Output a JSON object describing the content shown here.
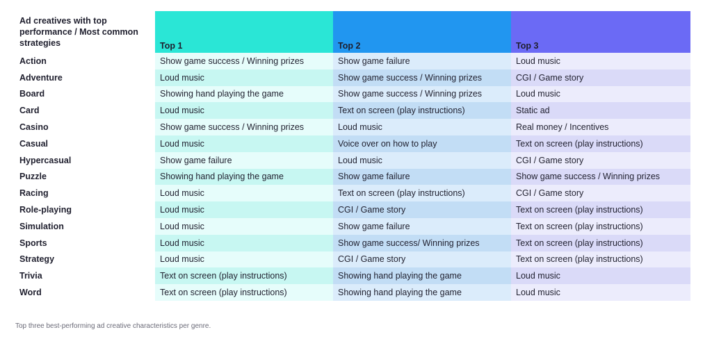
{
  "chart_data": {
    "type": "table",
    "corner_header": "Ad creatives with top performance / Most common strategies",
    "columns": [
      "Top 1",
      "Top 2",
      "Top 3"
    ],
    "column_colors": [
      "#2ae6d6",
      "#2196f0",
      "#6b6af5"
    ],
    "rows": [
      {
        "genre": "Action",
        "values": [
          "Show game success / Winning prizes",
          "Show game failure",
          "Loud music"
        ]
      },
      {
        "genre": "Adventure",
        "values": [
          "Loud music",
          "Show game success / Winning prizes",
          "CGI / Game story"
        ]
      },
      {
        "genre": "Board",
        "values": [
          "Showing hand playing the game",
          "Show game success / Winning prizes",
          "Loud music"
        ]
      },
      {
        "genre": "Card",
        "values": [
          "Loud music",
          "Text on screen (play instructions)",
          "Static ad"
        ]
      },
      {
        "genre": "Casino",
        "values": [
          "Show game success / Winning prizes",
          "Loud music",
          "Real money / Incentives"
        ]
      },
      {
        "genre": "Casual",
        "values": [
          "Loud music",
          "Voice over on how to play",
          "Text on screen (play instructions)"
        ]
      },
      {
        "genre": "Hypercasual",
        "values": [
          "Show game failure",
          "Loud music",
          "CGI / Game story"
        ]
      },
      {
        "genre": "Puzzle",
        "values": [
          "Showing hand playing the game",
          "Show game failure",
          "Show game success / Winning prizes"
        ]
      },
      {
        "genre": "Racing",
        "values": [
          "Loud music",
          "Text on screen (play instructions)",
          "CGI / Game story"
        ]
      },
      {
        "genre": "Role-playing",
        "values": [
          "Loud music",
          "CGI / Game story",
          "Text on screen (play instructions)"
        ]
      },
      {
        "genre": "Simulation",
        "values": [
          "Loud music",
          "Show game failure",
          "Text on screen (play instructions)"
        ]
      },
      {
        "genre": "Sports",
        "values": [
          "Loud music",
          "Show game success/ Winning prizes",
          "Text on screen (play instructions)"
        ]
      },
      {
        "genre": "Strategy",
        "values": [
          "Loud music",
          "CGI / Game story",
          "Text on screen (play instructions)"
        ]
      },
      {
        "genre": "Trivia",
        "values": [
          "Text on screen (play instructions)",
          "Showing hand playing the game",
          "Loud music"
        ]
      },
      {
        "genre": "Word",
        "values": [
          "Text on screen (play instructions)",
          "Showing hand playing the game",
          "Loud music"
        ]
      }
    ],
    "caption": "Top three best-performing ad creative characteristics per genre."
  }
}
